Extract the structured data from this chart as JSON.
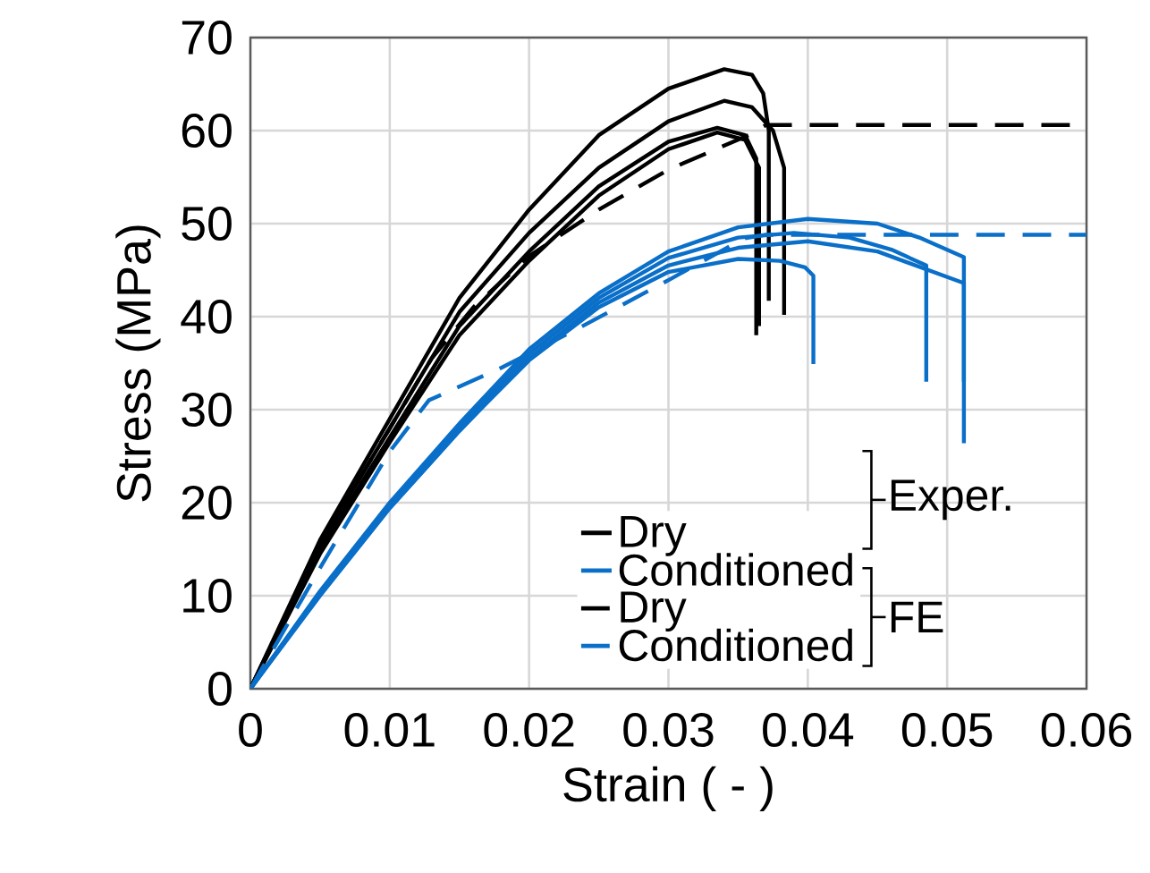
{
  "chart_data": {
    "type": "line",
    "xlabel": "Strain ( - )",
    "ylabel": "Stress (MPa)",
    "xlim": [
      0,
      0.06
    ],
    "ylim": [
      0,
      70
    ],
    "xticks": [
      0,
      0.01,
      0.02,
      0.03,
      0.04,
      0.05,
      0.06
    ],
    "yticks": [
      0,
      10,
      20,
      30,
      40,
      50,
      60,
      70
    ],
    "grid": true,
    "legend": "bottom right",
    "annotations": [
      "Exper.",
      "FE"
    ],
    "series": [
      {
        "name": "Dry",
        "color": "#000000",
        "line_style": "solid",
        "x": [
          0,
          0.005,
          0.01,
          0.015,
          0.02,
          0.025,
          0.03,
          0.034,
          0.036,
          0.0368,
          0.0372,
          0.0372
        ],
        "values": [
          0,
          16,
          29,
          42,
          51.5,
          59.5,
          64.5,
          66.6,
          66,
          64,
          60,
          41.7
        ]
      },
      {
        "color": "#000000",
        "line_style": "solid",
        "x": [
          0,
          0.005,
          0.01,
          0.015,
          0.02,
          0.025,
          0.03,
          0.034,
          0.036,
          0.0375,
          0.0383,
          0.0383
        ],
        "values": [
          0,
          15.5,
          28,
          40.5,
          49,
          56,
          61,
          63.2,
          62.5,
          60,
          56,
          40.2
        ]
      },
      {
        "color": "#000000",
        "line_style": "solid",
        "x": [
          0,
          0.005,
          0.01,
          0.015,
          0.02,
          0.025,
          0.03,
          0.0335,
          0.0355,
          0.0363,
          0.0363
        ],
        "values": [
          0,
          15,
          27,
          39,
          47,
          54,
          58.8,
          60.3,
          59.5,
          57,
          38
        ]
      },
      {
        "color": "#000000",
        "line_style": "solid",
        "x": [
          0,
          0.005,
          0.01,
          0.015,
          0.02,
          0.025,
          0.03,
          0.0335,
          0.0355,
          0.0365,
          0.0365
        ],
        "values": [
          0,
          14.5,
          26.5,
          38,
          46,
          53,
          58,
          59.8,
          59,
          56,
          39
        ]
      },
      {
        "name": "Conditioned",
        "color": "#0a6fc8",
        "line_style": "solid",
        "x": [
          0,
          0.005,
          0.01,
          0.015,
          0.02,
          0.025,
          0.03,
          0.035,
          0.04,
          0.045,
          0.048,
          0.0512,
          0.0512
        ],
        "values": [
          0,
          10.5,
          20,
          28.5,
          36.5,
          42.5,
          47,
          49.6,
          50.5,
          50,
          48.5,
          46.4,
          33
        ]
      },
      {
        "color": "#0a6fc8",
        "line_style": "solid",
        "x": [
          0,
          0.005,
          0.01,
          0.015,
          0.02,
          0.025,
          0.03,
          0.035,
          0.039,
          0.043,
          0.046,
          0.0485,
          0.0485
        ],
        "values": [
          0,
          10.3,
          19.7,
          28,
          36,
          42,
          46.3,
          48.5,
          49,
          48.5,
          47.2,
          45.5,
          33
        ]
      },
      {
        "color": "#0a6fc8",
        "line_style": "solid",
        "x": [
          0,
          0.005,
          0.01,
          0.015,
          0.02,
          0.025,
          0.03,
          0.035,
          0.04,
          0.045,
          0.0512,
          0.0512
        ],
        "values": [
          0,
          10,
          19.4,
          27.7,
          35.5,
          41.5,
          45.5,
          47.4,
          48.1,
          47,
          43.6,
          26.4
        ]
      },
      {
        "color": "#0a6fc8",
        "line_style": "solid",
        "x": [
          0,
          0.005,
          0.01,
          0.015,
          0.02,
          0.025,
          0.03,
          0.035,
          0.038,
          0.0398,
          0.0404,
          0.0404
        ],
        "values": [
          0,
          10.2,
          19.5,
          27.8,
          35.3,
          41,
          44.8,
          46.2,
          46,
          45.3,
          44.4,
          34.9
        ]
      },
      {
        "name": "Dry",
        "color": "#000000",
        "line_style": "dashed",
        "x": [
          0,
          0.005,
          0.01,
          0.013,
          0.016,
          0.02,
          0.025,
          0.03,
          0.0359,
          0.037,
          0.06
        ],
        "values": [
          0,
          15.5,
          28,
          35.5,
          41,
          46.5,
          51.5,
          55.8,
          59.6,
          60.6,
          60.6
        ]
      },
      {
        "name": "Conditioned",
        "color": "#0a6fc8",
        "line_style": "dashed",
        "x": [
          0,
          0.005,
          0.01,
          0.0128,
          0.018,
          0.0236,
          0.0301,
          0.0354,
          0.037,
          0.06
        ],
        "values": [
          0,
          13,
          25.5,
          31,
          34.5,
          38.8,
          44,
          48.4,
          48.8,
          48.8
        ]
      }
    ]
  }
}
